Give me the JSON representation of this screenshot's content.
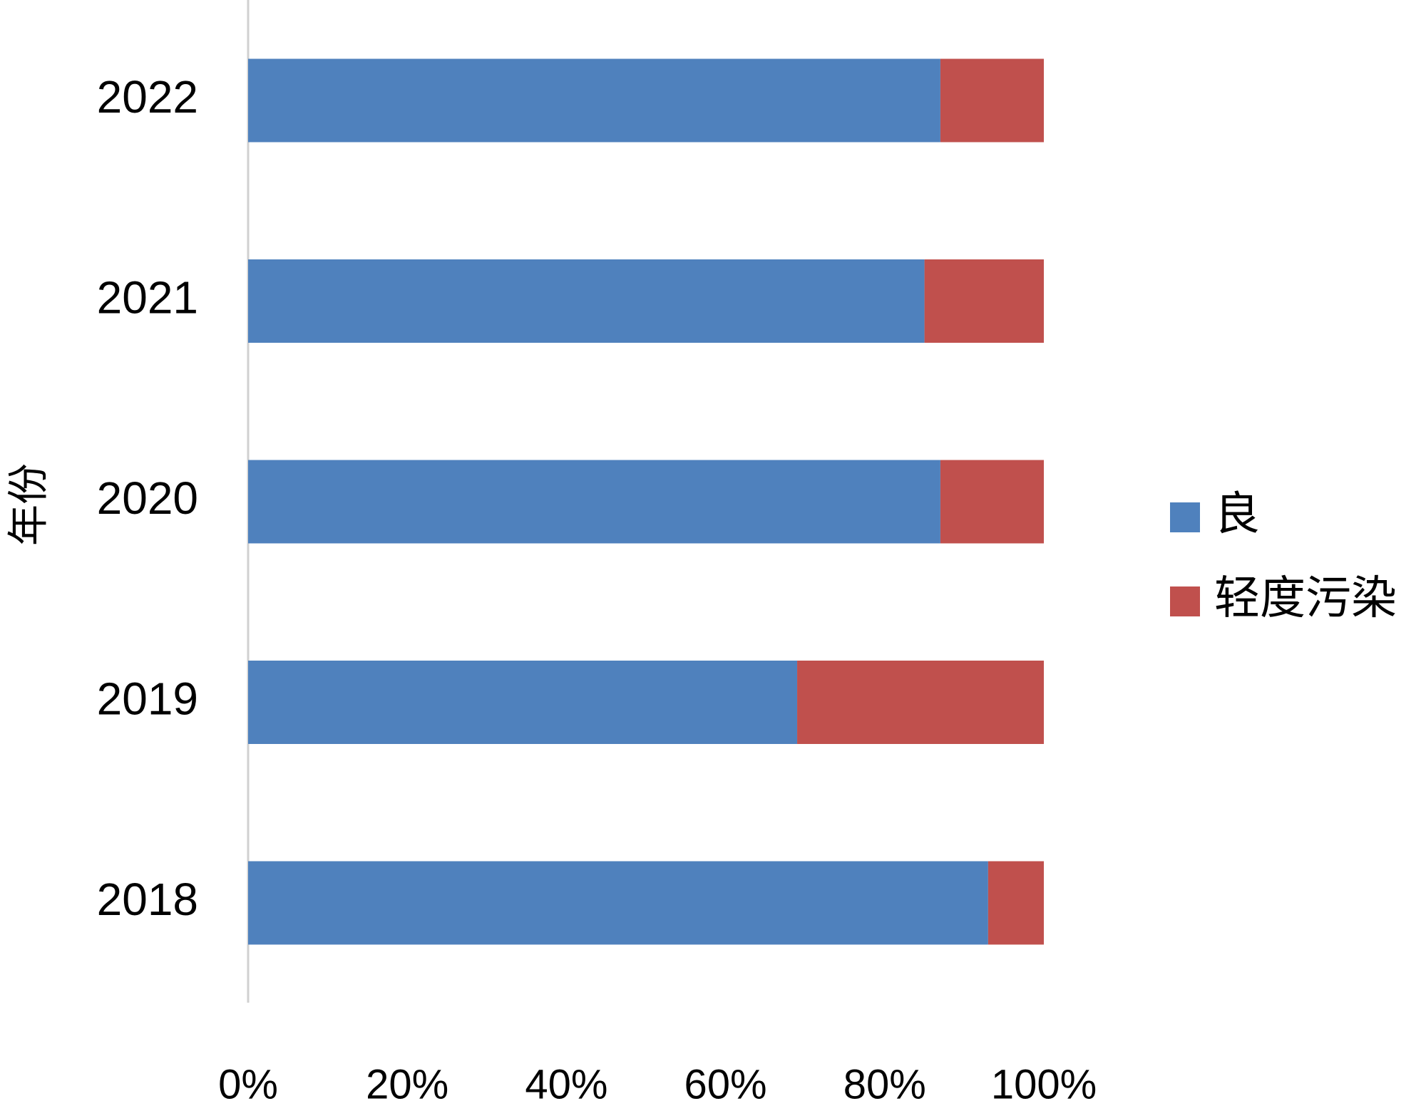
{
  "chart_data": {
    "type": "stacked_barh",
    "y_label": "年份",
    "categories": [
      "2018",
      "2019",
      "2020",
      "2021",
      "2022"
    ],
    "series": [
      {
        "name": "良",
        "color": "#4f81bd",
        "values": [
          93,
          69,
          87,
          85,
          87
        ]
      },
      {
        "name": "轻度污染",
        "color": "#c0504d",
        "values": [
          7,
          31,
          13,
          15,
          13
        ]
      }
    ],
    "xlim": [
      0,
      100
    ],
    "xticks": [
      {
        "value": 0,
        "label": "0%"
      },
      {
        "value": 20,
        "label": "20%"
      },
      {
        "value": 40,
        "label": "40%"
      },
      {
        "value": 60,
        "label": "60%"
      },
      {
        "value": 80,
        "label": "80%"
      },
      {
        "value": 100,
        "label": "100%"
      }
    ],
    "legend": "right"
  }
}
